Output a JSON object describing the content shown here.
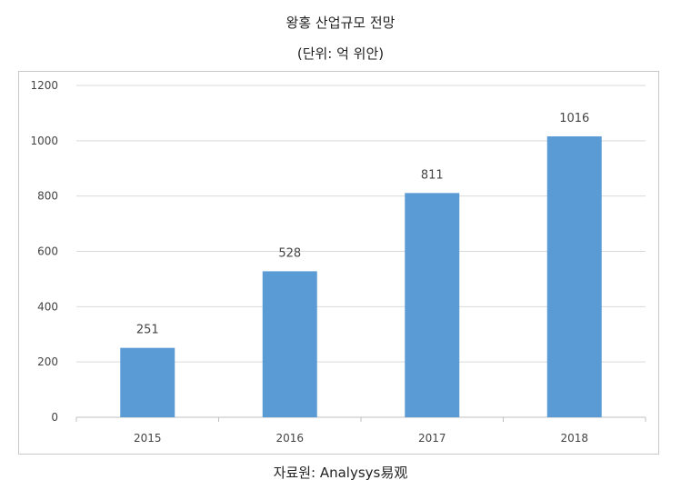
{
  "chart_data": {
    "type": "bar",
    "title": "왕홍 산업규모 전망",
    "subtitle": "(단위: 억 위안)",
    "categories": [
      "2015",
      "2016",
      "2017",
      "2018"
    ],
    "values": [
      251,
      528,
      811,
      1016
    ],
    "data_labels": [
      "251",
      "528",
      "811",
      "1016"
    ],
    "ylim": [
      0,
      1200
    ],
    "yticks": [
      0,
      200,
      400,
      600,
      800,
      1000,
      1200
    ],
    "xlabel": "",
    "ylabel": "",
    "grid": true,
    "legend": "none",
    "bar_color": "#5b9bd5",
    "gridline_color": "#d9d9d9"
  },
  "source": "자료원: Analysys易观"
}
